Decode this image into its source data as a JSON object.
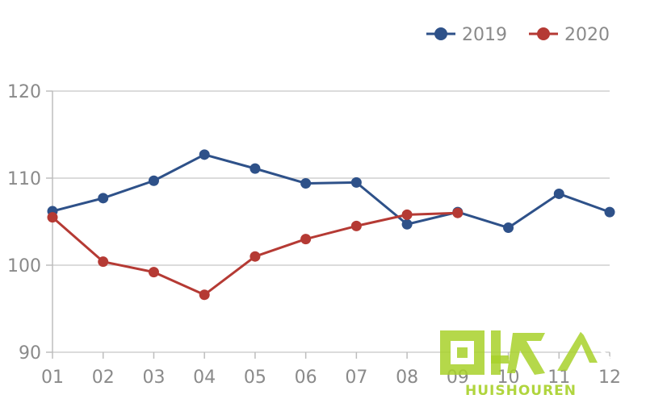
{
  "chart_data": {
    "type": "line",
    "title": "",
    "xlabel": "",
    "ylabel": "",
    "categories": [
      "01",
      "02",
      "03",
      "04",
      "05",
      "06",
      "07",
      "08",
      "09",
      "10",
      "11",
      "12"
    ],
    "ylim": [
      90,
      120
    ],
    "yticks": [
      90,
      100,
      110,
      120
    ],
    "grid": true,
    "legend_position": "top-right",
    "series": [
      {
        "name": "2019",
        "color": "#2e5189",
        "values": [
          106.2,
          107.7,
          109.7,
          112.7,
          111.1,
          109.4,
          109.5,
          104.7,
          106.1,
          104.3,
          108.2,
          106.1
        ]
      },
      {
        "name": "2020",
        "color": "#b53a34",
        "values": [
          105.5,
          100.4,
          99.2,
          96.6,
          101.0,
          103.0,
          104.5,
          105.8,
          106.0,
          null,
          null,
          null
        ]
      }
    ]
  },
  "watermark": {
    "text": "HUISHOUREN",
    "color": "#a8d12a",
    "icon": "recycle-logo"
  }
}
